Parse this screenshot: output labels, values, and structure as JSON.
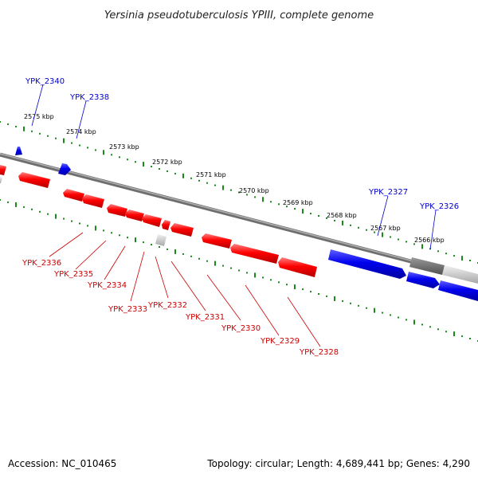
{
  "title": "Yersinia pseudotuberculosis YPIII, complete genome",
  "footer": {
    "accession": "Accession: NC_010465",
    "summary": "Topology: circular; Length: 4,689,441 bp; Genes: 4,290"
  },
  "colors": {
    "reverse_strand": "#ff0000",
    "forward_strand": "#0000ff",
    "other": "#c8c8c8",
    "ticks": "#008000",
    "backbone": "#808080"
  },
  "scale_labels": [
    "2575 kbp",
    "2574 kbp",
    "2573 kbp",
    "2572 kbp",
    "2571 kbp",
    "2570 kbp",
    "2569 kbp",
    "2568 kbp",
    "2567 kbp",
    "2566 kbp"
  ],
  "gene_labels": {
    "forward": [
      "YPK_2340",
      "YPK_2338",
      "YPK_2327",
      "YPK_2326"
    ],
    "reverse": [
      "YPK_2336",
      "YPK_2335",
      "YPK_2334",
      "YPK_2333",
      "YPK_2332",
      "YPK_2331",
      "YPK_2330",
      "YPK_2329",
      "YPK_2328"
    ]
  }
}
